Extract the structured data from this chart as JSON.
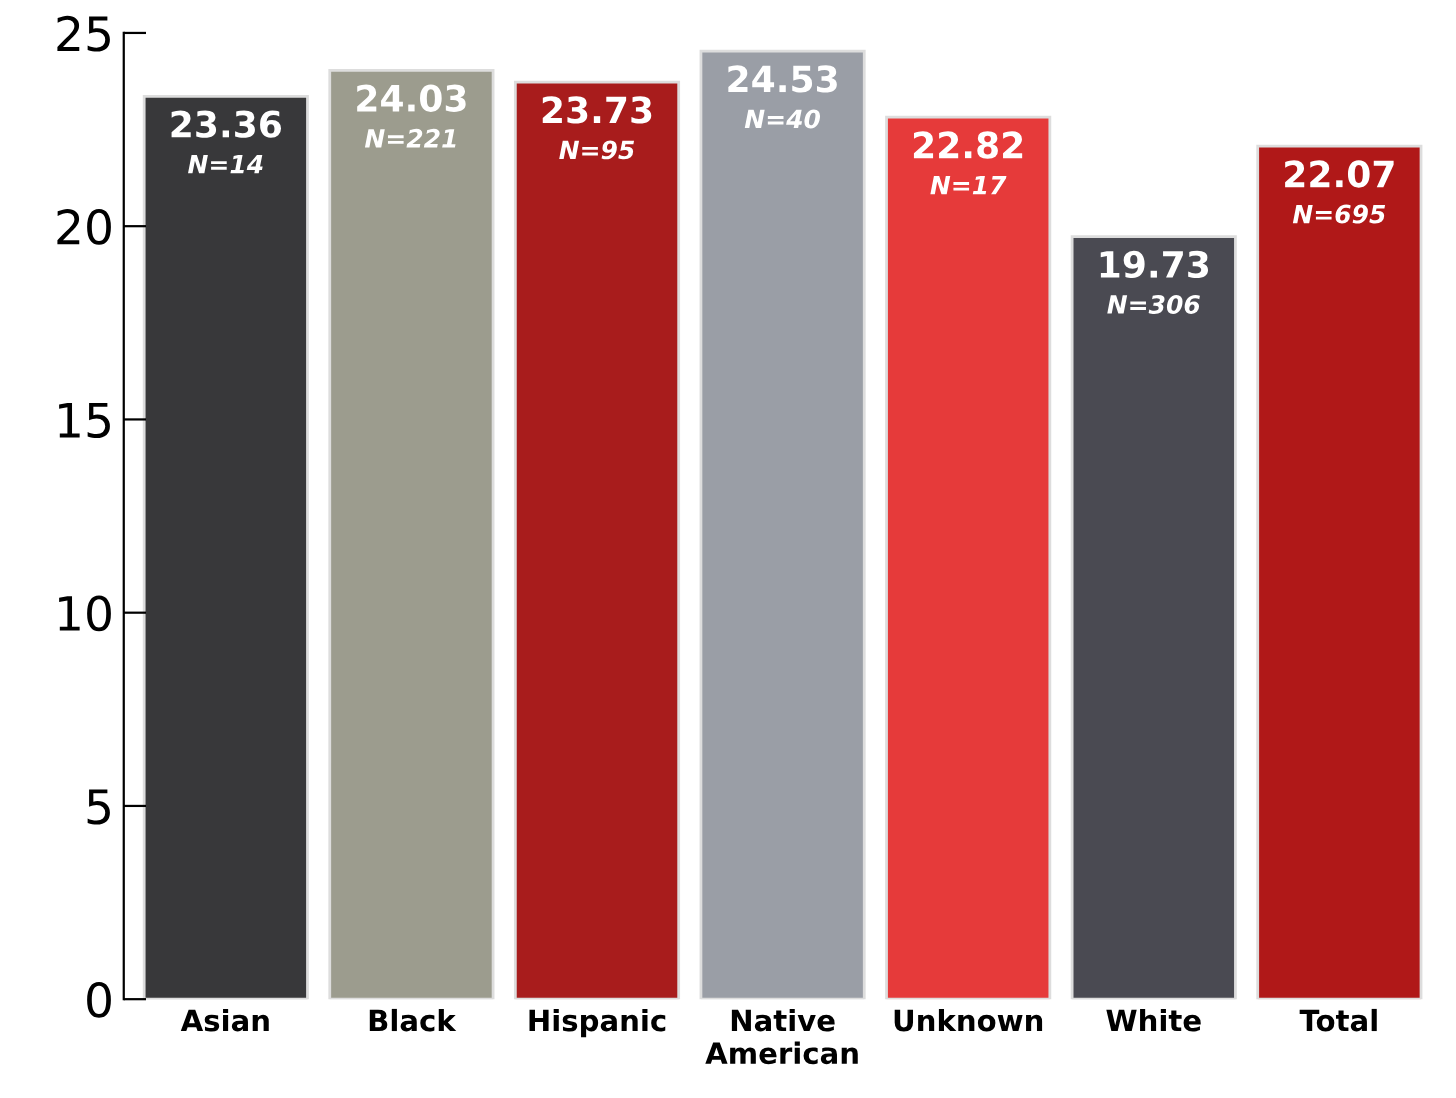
{
  "chart_data": {
    "type": "bar",
    "categories": [
      "Asian",
      "Black",
      "Hispanic",
      "Native\nAmerican",
      "Unknown",
      "White",
      "Total"
    ],
    "values": [
      23.36,
      24.03,
      23.73,
      24.53,
      22.82,
      19.73,
      22.07
    ],
    "colors": [
      "#38383a",
      "#9c9c8e",
      "#a81c1c",
      "#9a9ea6",
      "#e63a3a",
      "#4a4a52",
      "#b01818"
    ],
    "data_labels": true,
    "annotations": [
      "N=14",
      "N=221",
      "N=95",
      "N=40",
      "N=17",
      "N=306",
      "N=695"
    ],
    "ylim": [
      0,
      25
    ],
    "yticks": [
      0,
      5,
      10,
      15,
      20,
      25
    ],
    "grid": false
  }
}
